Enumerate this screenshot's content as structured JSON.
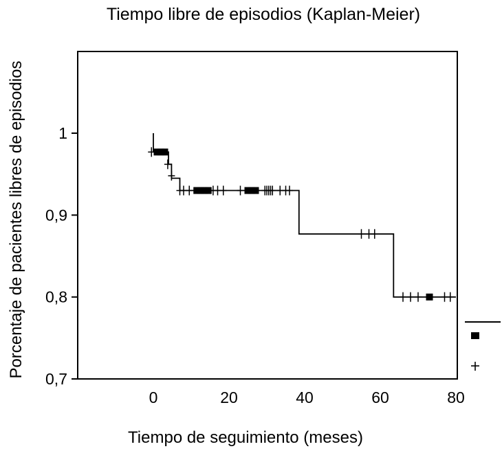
{
  "chart_data": {
    "type": "line",
    "title": "Tiempo libre de episodios (Kaplan-Meier)",
    "xlabel": "Tiempo de seguimiento (meses)",
    "ylabel": "Porcentaje de pacientes libres de episodios",
    "xlim": [
      -20,
      80
    ],
    "ylim": [
      0.7,
      1.1
    ],
    "xticks": [
      0,
      20,
      40,
      60,
      80
    ],
    "xtick_labels": [
      "0",
      "20",
      "40",
      "60",
      "80"
    ],
    "yticks": [
      0.7,
      0.8,
      0.9,
      1.0
    ],
    "ytick_labels": [
      "0,7",
      "0,8",
      "0,9",
      "1"
    ],
    "grid": false,
    "legend_placement": "right",
    "series": [
      {
        "step": [
          [
            0,
            1.0
          ],
          [
            0,
            0.977
          ],
          [
            4,
            0.977
          ],
          [
            4,
            0.962
          ],
          [
            4.8,
            0.962
          ],
          [
            4.8,
            0.945
          ],
          [
            7,
            0.945
          ],
          [
            7,
            0.93
          ],
          [
            38.5,
            0.93
          ],
          [
            38.5,
            0.877
          ],
          [
            63.5,
            0.877
          ],
          [
            63.5,
            0.8
          ],
          [
            80,
            0.8
          ]
        ],
        "censored": [
          [
            -0.5,
            0.977
          ],
          [
            3.8,
            0.962
          ],
          [
            4.8,
            0.948
          ],
          [
            7,
            0.93
          ],
          [
            8,
            0.93
          ],
          [
            9.5,
            0.93
          ],
          [
            15.8,
            0.93
          ],
          [
            17,
            0.93
          ],
          [
            18.5,
            0.93
          ],
          [
            23,
            0.93
          ],
          [
            29.5,
            0.93
          ],
          [
            30,
            0.93
          ],
          [
            30.5,
            0.93
          ],
          [
            31,
            0.93
          ],
          [
            31.5,
            0.93
          ],
          [
            33.5,
            0.93
          ],
          [
            35,
            0.93
          ],
          [
            36,
            0.93
          ],
          [
            55,
            0.877
          ],
          [
            57,
            0.877
          ],
          [
            58.5,
            0.877
          ],
          [
            66,
            0.8
          ],
          [
            68,
            0.8
          ],
          [
            70,
            0.8
          ],
          [
            77,
            0.8
          ],
          [
            78.5,
            0.8
          ]
        ],
        "events": [
          [
            1.0,
            0.977
          ],
          [
            2.0,
            0.977
          ],
          [
            3.0,
            0.977
          ],
          [
            11.5,
            0.93
          ],
          [
            12.5,
            0.93
          ],
          [
            13.5,
            0.93
          ],
          [
            14.5,
            0.93
          ],
          [
            25,
            0.93
          ],
          [
            26,
            0.93
          ],
          [
            27,
            0.93
          ],
          [
            73,
            0.8
          ]
        ]
      }
    ]
  }
}
